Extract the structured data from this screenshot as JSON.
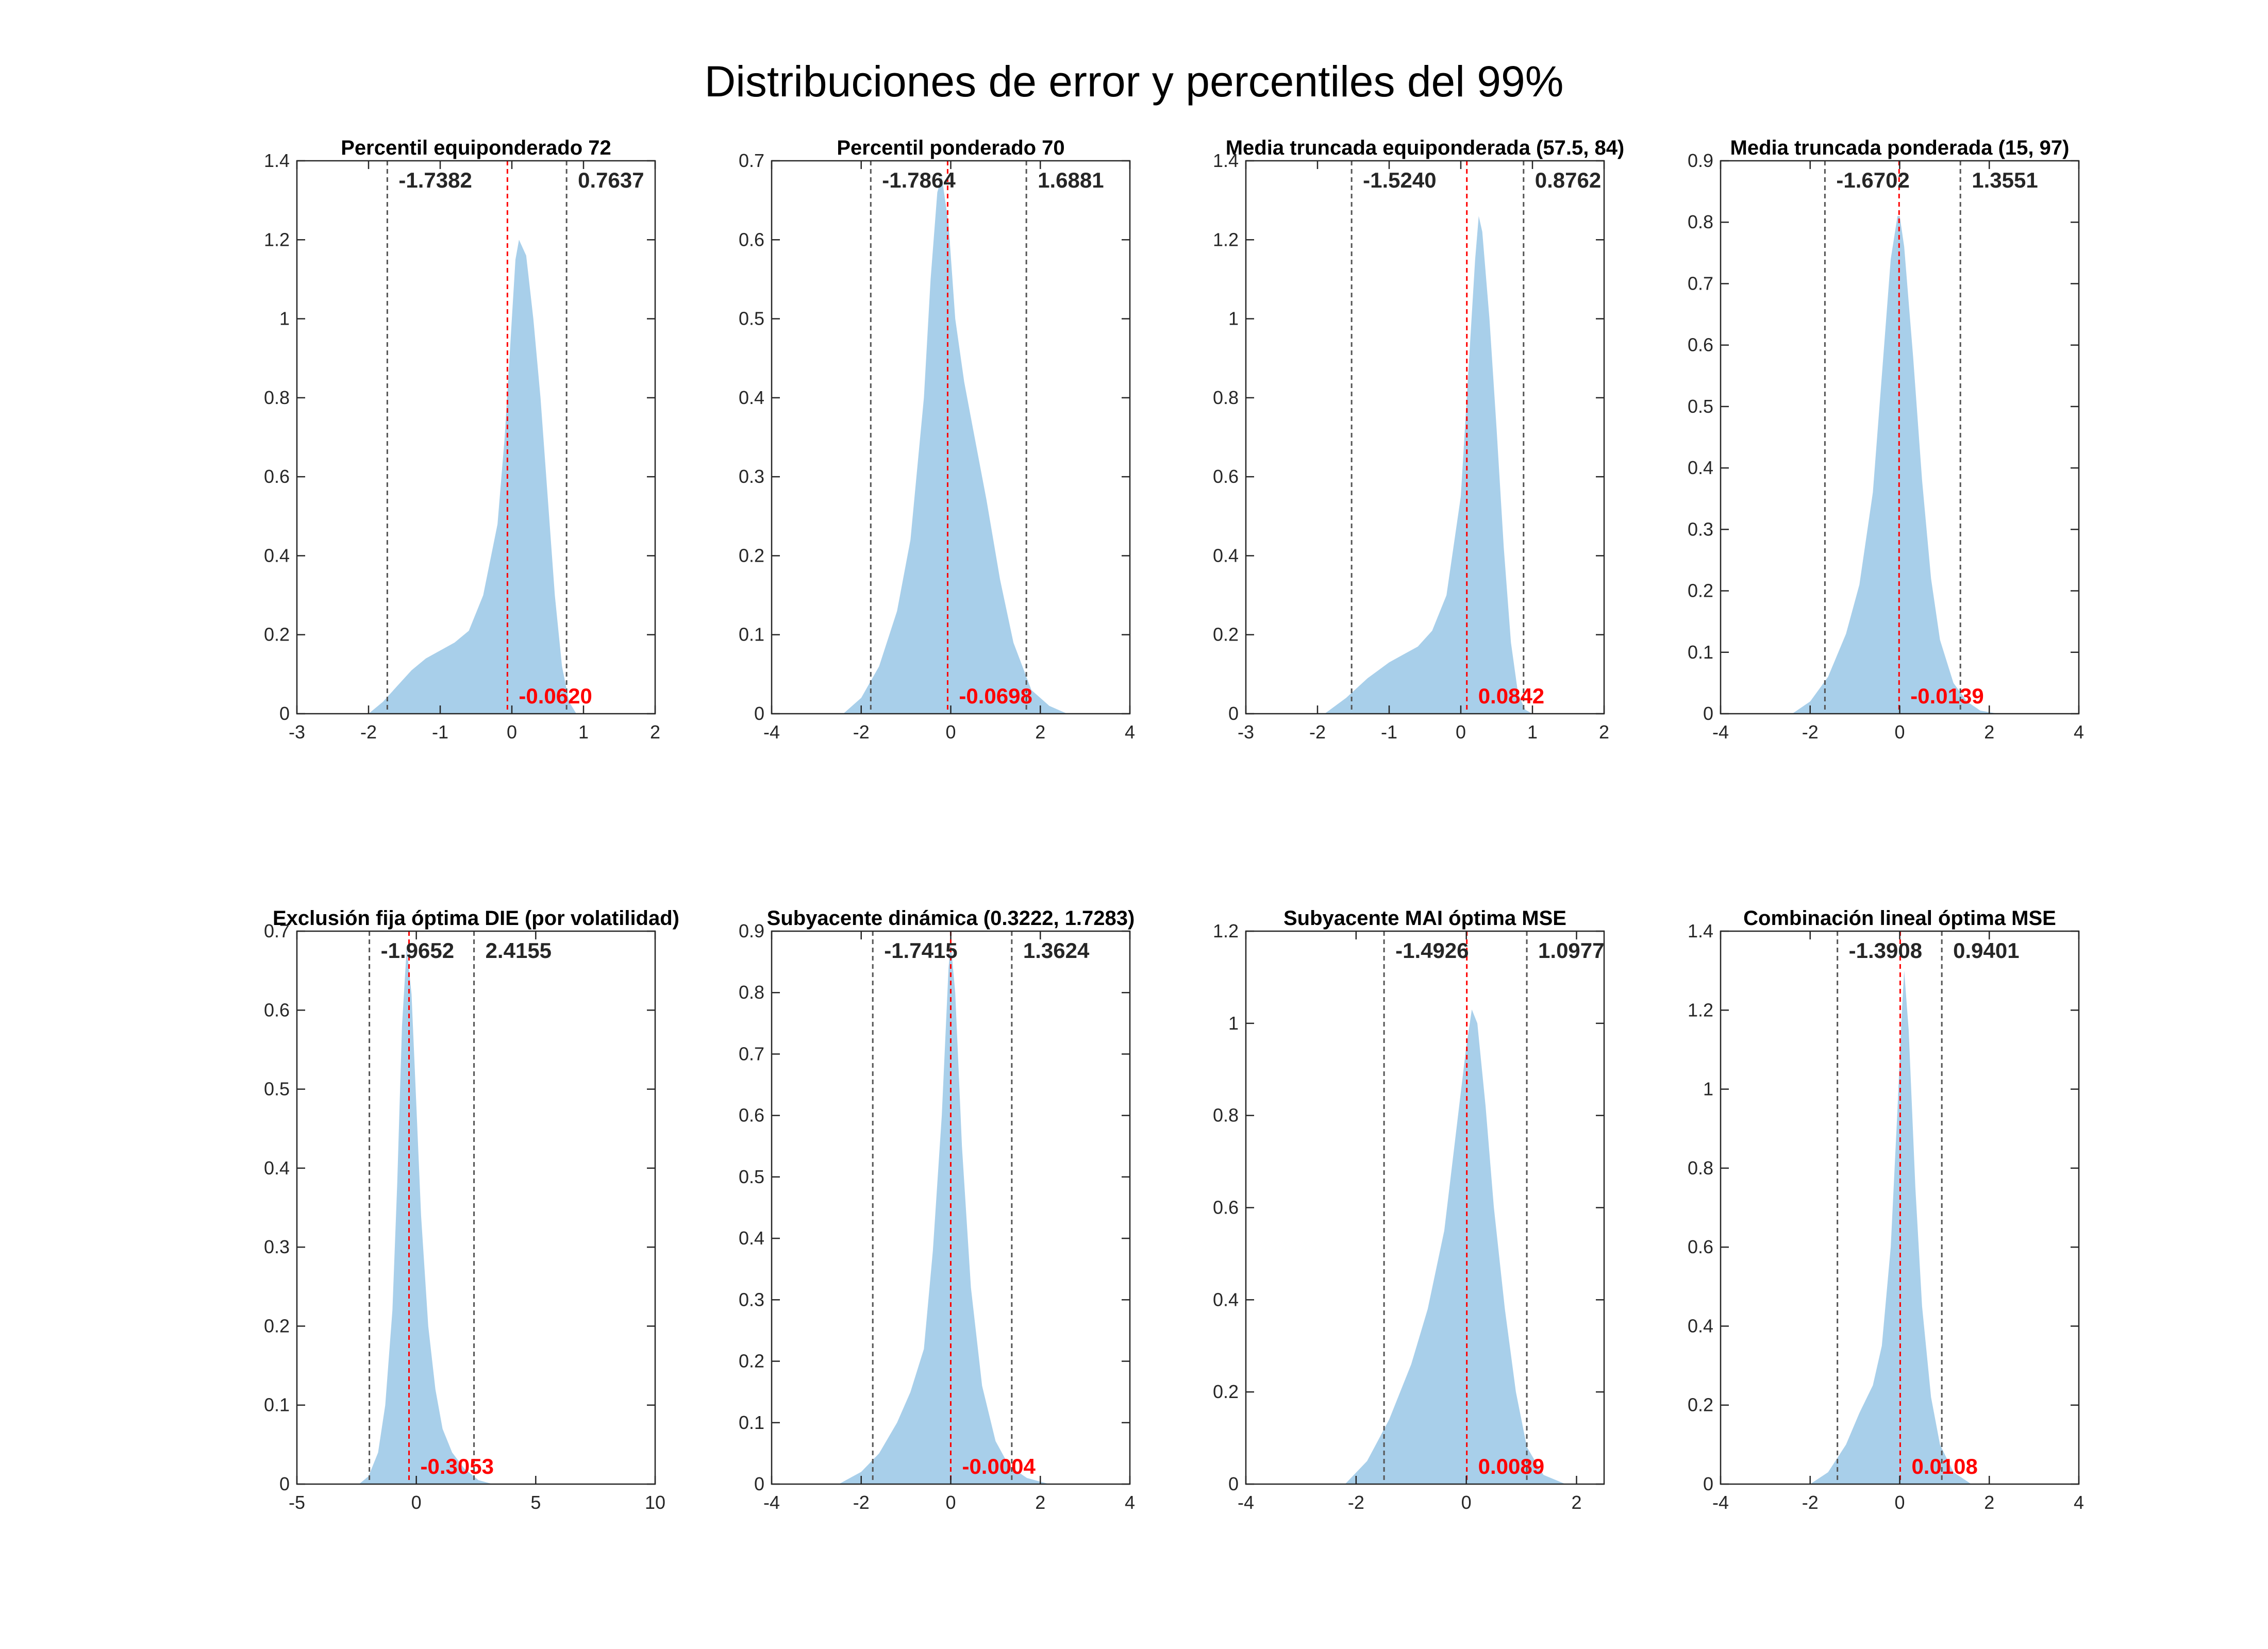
{
  "title": "Distribuciones de error y percentiles del 99%",
  "colors": {
    "fill": "#a8cfea",
    "mean_line": "#ff0000",
    "pct_line": "#555555",
    "axis": "#262626"
  },
  "chart_data": [
    {
      "type": "area",
      "title": "Percentil equiponderado 72",
      "xlim": [
        -3,
        2
      ],
      "ylim": [
        0,
        1.4
      ],
      "xticks": [
        -3,
        -2,
        -1,
        0,
        1,
        2
      ],
      "yticks": [
        0,
        0.2,
        0.4,
        0.6,
        0.8,
        1,
        1.2,
        1.4
      ],
      "lower_pct": -1.7382,
      "upper_pct": 0.7637,
      "mean": -0.062,
      "lower_label": "-1.7382",
      "upper_label": "0.7637",
      "mean_label": "-0.0620",
      "x": [
        -2.0,
        -1.8,
        -1.6,
        -1.4,
        -1.2,
        -1.0,
        -0.8,
        -0.6,
        -0.4,
        -0.2,
        -0.1,
        0.0,
        0.05,
        0.1,
        0.2,
        0.3,
        0.4,
        0.5,
        0.6,
        0.7,
        0.8,
        0.9
      ],
      "y": [
        0.0,
        0.03,
        0.07,
        0.11,
        0.14,
        0.16,
        0.18,
        0.21,
        0.3,
        0.48,
        0.7,
        1.0,
        1.15,
        1.2,
        1.16,
        1.0,
        0.8,
        0.55,
        0.3,
        0.12,
        0.03,
        0.0
      ]
    },
    {
      "type": "area",
      "title": "Percentil ponderado 70",
      "xlim": [
        -4,
        4
      ],
      "ylim": [
        0,
        0.7
      ],
      "xticks": [
        -4,
        -2,
        0,
        2,
        4
      ],
      "yticks": [
        0,
        0.1,
        0.2,
        0.3,
        0.4,
        0.5,
        0.6,
        0.7
      ],
      "lower_pct": -1.7864,
      "upper_pct": 1.6881,
      "mean": -0.0698,
      "lower_label": "-1.7864",
      "upper_label": "1.6881",
      "mean_label": "-0.0698",
      "x": [
        -2.4,
        -2.0,
        -1.6,
        -1.2,
        -0.9,
        -0.6,
        -0.45,
        -0.3,
        -0.2,
        -0.05,
        0.1,
        0.3,
        0.5,
        0.8,
        1.1,
        1.4,
        1.8,
        2.2,
        2.6
      ],
      "y": [
        0.0,
        0.02,
        0.06,
        0.13,
        0.22,
        0.4,
        0.55,
        0.66,
        0.68,
        0.62,
        0.5,
        0.42,
        0.36,
        0.27,
        0.17,
        0.09,
        0.03,
        0.01,
        0.0
      ]
    },
    {
      "type": "area",
      "title": "Media truncada equiponderada (57.5, 84)",
      "xlim": [
        -3,
        2
      ],
      "ylim": [
        0,
        1.4
      ],
      "xticks": [
        -3,
        -2,
        -1,
        0,
        1,
        2
      ],
      "yticks": [
        0,
        0.2,
        0.4,
        0.6,
        0.8,
        1,
        1.2,
        1.4
      ],
      "lower_pct": -1.524,
      "upper_pct": 0.8762,
      "mean": 0.0842,
      "lower_label": "-1.5240",
      "upper_label": "0.8762",
      "mean_label": "0.0842",
      "x": [
        -1.9,
        -1.6,
        -1.3,
        -1.0,
        -0.8,
        -0.6,
        -0.4,
        -0.2,
        0.0,
        0.1,
        0.2,
        0.25,
        0.3,
        0.4,
        0.5,
        0.6,
        0.7,
        0.8,
        0.9,
        1.0
      ],
      "y": [
        0.0,
        0.04,
        0.09,
        0.13,
        0.15,
        0.17,
        0.21,
        0.3,
        0.55,
        0.85,
        1.15,
        1.26,
        1.22,
        1.0,
        0.72,
        0.42,
        0.18,
        0.05,
        0.01,
        0.0
      ]
    },
    {
      "type": "area",
      "title": "Media truncada ponderada (15, 97)",
      "xlim": [
        -4,
        4
      ],
      "ylim": [
        0,
        0.9
      ],
      "xticks": [
        -4,
        -2,
        0,
        2,
        4
      ],
      "yticks": [
        0,
        0.1,
        0.2,
        0.3,
        0.4,
        0.5,
        0.6,
        0.7,
        0.8,
        0.9
      ],
      "lower_pct": -1.6702,
      "upper_pct": 1.3551,
      "mean": -0.0139,
      "lower_label": "-1.6702",
      "upper_label": "1.3551",
      "mean_label": "-0.0139",
      "x": [
        -2.4,
        -2.0,
        -1.6,
        -1.2,
        -0.9,
        -0.6,
        -0.4,
        -0.2,
        -0.05,
        0.0,
        0.1,
        0.3,
        0.5,
        0.7,
        0.9,
        1.2,
        1.5,
        1.8,
        2.2
      ],
      "y": [
        0.0,
        0.02,
        0.06,
        0.13,
        0.21,
        0.36,
        0.55,
        0.74,
        0.81,
        0.81,
        0.76,
        0.58,
        0.38,
        0.22,
        0.12,
        0.05,
        0.02,
        0.005,
        0.0
      ]
    },
    {
      "type": "area",
      "title": "Exclusión fija óptima DIE (por volatilidad)",
      "xlim": [
        -5,
        10
      ],
      "ylim": [
        0,
        0.7
      ],
      "xticks": [
        -5,
        0,
        5,
        10
      ],
      "yticks": [
        0,
        0.1,
        0.2,
        0.3,
        0.4,
        0.5,
        0.6,
        0.7
      ],
      "lower_pct": -1.9652,
      "upper_pct": 2.4155,
      "mean": -0.3053,
      "lower_label": "-1.9652",
      "upper_label": "2.4155",
      "mean_label": "-0.3053",
      "x": [
        -2.4,
        -2.0,
        -1.6,
        -1.3,
        -1.0,
        -0.8,
        -0.6,
        -0.4,
        -0.2,
        0.0,
        0.2,
        0.5,
        0.8,
        1.1,
        1.5,
        2.0,
        2.6,
        3.2
      ],
      "y": [
        0.0,
        0.01,
        0.04,
        0.1,
        0.22,
        0.38,
        0.58,
        0.68,
        0.62,
        0.48,
        0.34,
        0.2,
        0.12,
        0.07,
        0.04,
        0.02,
        0.005,
        0.0
      ]
    },
    {
      "type": "area",
      "title": "Subyacente dinámica (0.3222, 1.7283)",
      "xlim": [
        -4,
        4
      ],
      "ylim": [
        0,
        0.9
      ],
      "xticks": [
        -4,
        -2,
        0,
        2,
        4
      ],
      "yticks": [
        0,
        0.1,
        0.2,
        0.3,
        0.4,
        0.5,
        0.6,
        0.7,
        0.8,
        0.9
      ],
      "lower_pct": -1.7415,
      "upper_pct": 1.3624,
      "mean": -0.0004,
      "lower_label": "-1.7415",
      "upper_label": "1.3624",
      "mean_label": "-0.0004",
      "x": [
        -2.5,
        -2.0,
        -1.6,
        -1.2,
        -0.9,
        -0.6,
        -0.4,
        -0.2,
        -0.05,
        0.0,
        0.1,
        0.25,
        0.45,
        0.7,
        1.0,
        1.3,
        1.7,
        2.2
      ],
      "y": [
        0.0,
        0.02,
        0.05,
        0.1,
        0.15,
        0.22,
        0.38,
        0.6,
        0.84,
        0.88,
        0.8,
        0.55,
        0.32,
        0.16,
        0.07,
        0.03,
        0.01,
        0.0
      ]
    },
    {
      "type": "area",
      "title": "Subyacente MAI óptima MSE",
      "xlim": [
        -4,
        2.5
      ],
      "ylim": [
        0,
        1.2
      ],
      "xticks": [
        -4,
        -2,
        0,
        2
      ],
      "yticks": [
        0,
        0.2,
        0.4,
        0.6,
        0.8,
        1,
        1.2
      ],
      "lower_pct": -1.4926,
      "upper_pct": 1.0977,
      "mean": 0.0089,
      "lower_label": "-1.4926",
      "upper_label": "1.0977",
      "mean_label": "0.0089",
      "x": [
        -2.2,
        -1.8,
        -1.4,
        -1.0,
        -0.7,
        -0.4,
        -0.2,
        0.0,
        0.1,
        0.2,
        0.35,
        0.5,
        0.7,
        0.9,
        1.1,
        1.4,
        1.8
      ],
      "y": [
        0.0,
        0.05,
        0.14,
        0.26,
        0.38,
        0.55,
        0.75,
        0.95,
        1.03,
        1.0,
        0.82,
        0.6,
        0.38,
        0.2,
        0.08,
        0.02,
        0.0
      ]
    },
    {
      "type": "area",
      "title": "Combinación lineal óptima MSE",
      "xlim": [
        -4,
        4
      ],
      "ylim": [
        0,
        1.4
      ],
      "xticks": [
        -4,
        -2,
        0,
        2,
        4
      ],
      "yticks": [
        0,
        0.2,
        0.4,
        0.6,
        0.8,
        1,
        1.2,
        1.4
      ],
      "lower_pct": -1.3908,
      "upper_pct": 0.9401,
      "mean": 0.0108,
      "lower_label": "-1.3908",
      "upper_label": "0.9401",
      "mean_label": "0.0108",
      "x": [
        -2.0,
        -1.6,
        -1.2,
        -0.9,
        -0.6,
        -0.4,
        -0.2,
        -0.05,
        0.05,
        0.1,
        0.2,
        0.35,
        0.5,
        0.7,
        0.9,
        1.2,
        1.6
      ],
      "y": [
        0.0,
        0.03,
        0.1,
        0.18,
        0.25,
        0.35,
        0.6,
        0.95,
        1.2,
        1.3,
        1.15,
        0.75,
        0.45,
        0.22,
        0.1,
        0.03,
        0.0
      ]
    }
  ]
}
